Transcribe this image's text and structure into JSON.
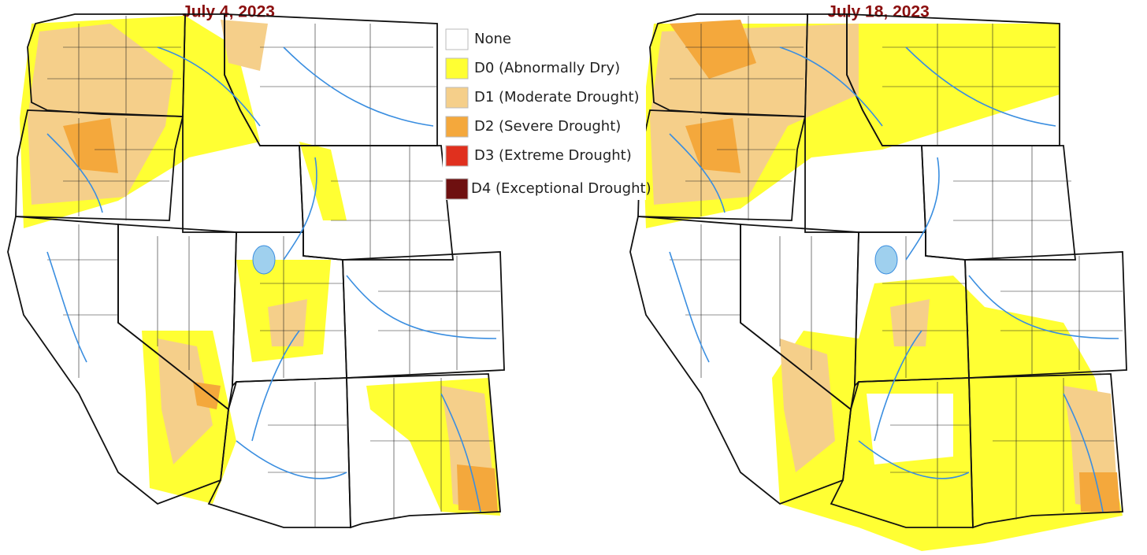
{
  "maps": [
    {
      "title": "July 4, 2023"
    },
    {
      "title": "July 18, 2023"
    }
  ],
  "legend": [
    {
      "label": "None",
      "color": "#ffffff"
    },
    {
      "label": "D0 (Abnormally Dry)",
      "color": "#ffff33"
    },
    {
      "label": "D1 (Moderate Drought)",
      "color": "#f5cf8a"
    },
    {
      "label": "D2 (Severe Drought)",
      "color": "#f4a83c"
    },
    {
      "label": "D3 (Extreme Drought)",
      "color": "#e0301e"
    },
    {
      "label": "D4 (Exceptional Drought)",
      "color": "#6e1010"
    }
  ]
}
